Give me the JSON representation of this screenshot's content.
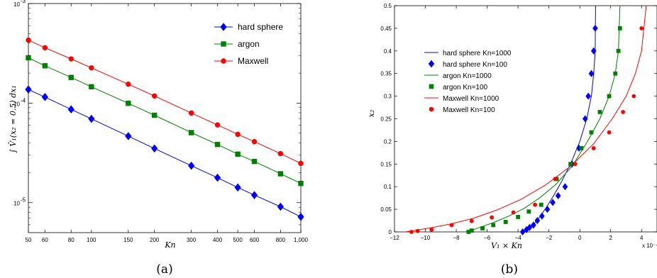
{
  "chart_data": [
    {
      "type": "line",
      "panel_label": "(a)",
      "xlabel": "Kn",
      "ylabel": "∫ V̄₁(x₂ = 0.5) dx₁",
      "xscale": "log",
      "yscale": "log",
      "xlim": [
        50,
        1000
      ],
      "ylim": [
        5e-06,
        0.001
      ],
      "x_ticks": [
        50,
        60,
        80,
        100,
        150,
        200,
        300,
        400,
        500,
        600,
        800,
        1000
      ],
      "x_tick_labels": [
        "50",
        "60",
        "80",
        "100",
        "150",
        "200",
        "300",
        "400",
        "500",
        "600",
        "800",
        "1,000"
      ],
      "y_ticks": [
        1e-05,
        0.0001,
        0.001
      ],
      "y_tick_labels": [
        {
          "base": "10",
          "exp": "-5"
        },
        {
          "base": "10",
          "exp": "-4"
        },
        {
          "base": "10",
          "exp": "-3"
        }
      ],
      "legend_position": "top-right",
      "x": [
        50,
        60,
        80,
        100,
        150,
        200,
        300,
        400,
        500,
        600,
        800,
        1000
      ],
      "series": [
        {
          "name": "hard sphere",
          "color": "#0000ff",
          "marker": "diamond",
          "values": [
            0.000137,
            0.000115,
            8.65e-05,
            6.95e-05,
            4.66e-05,
            3.5e-05,
            2.35e-05,
            1.78e-05,
            1.42e-05,
            1.19e-05,
            9.1e-06,
            7.2e-06
          ]
        },
        {
          "name": "argon",
          "color": "#008000",
          "marker": "square",
          "values": [
            0.000285,
            0.000237,
            0.000181,
            0.000146,
            9.95e-05,
            7.55e-05,
            5.05e-05,
            3.84e-05,
            3.07e-05,
            2.59e-05,
            1.95e-05,
            1.56e-05
          ]
        },
        {
          "name": "Maxwell",
          "color": "#ff0000",
          "marker": "circle",
          "values": [
            0.000429,
            0.00036,
            0.000278,
            0.000226,
            0.000155,
            0.000118,
            7.95e-05,
            6.04e-05,
            4.86e-05,
            4.1e-05,
            3.11e-05,
            2.48e-05
          ]
        }
      ]
    },
    {
      "type": "line",
      "panel_label": "(b)",
      "xlabel": "V₁ × Kn",
      "ylabel": "x₂",
      "x_multiplier": "x 10⁻⁴",
      "xlim": [
        -12,
        5
      ],
      "ylim": [
        0,
        0.5
      ],
      "x_ticks": [
        -12,
        -10,
        -8,
        -6,
        -4,
        -2,
        0,
        2,
        4
      ],
      "y_ticks": [
        0,
        0.05,
        0.1,
        0.15,
        0.2,
        0.25,
        0.3,
        0.35,
        0.4,
        0.45,
        0.5
      ],
      "legend_position": "top-left",
      "legend": [
        {
          "label": "hard sphere Kn=1000",
          "color": "#0000ff",
          "style": "line"
        },
        {
          "label": "hard sphere Kn=100",
          "color": "#0000ff",
          "style": "diamond"
        },
        {
          "label": "argon Kn=1000",
          "color": "#008000",
          "style": "line"
        },
        {
          "label": "argon Kn=100",
          "color": "#008000",
          "style": "square"
        },
        {
          "label": "Maxwell Kn=1000",
          "color": "#ff0000",
          "style": "line"
        },
        {
          "label": "Maxwell Kn=100",
          "color": "#ff0000",
          "style": "circle"
        }
      ],
      "series": [
        {
          "name": "hard sphere Kn=1000",
          "color": "#0000ff",
          "style": "line",
          "x": [
            -3.65,
            -3.5,
            -3.2,
            -2.9,
            -2.55,
            -2.15,
            -1.7,
            -1.2,
            -0.6,
            0,
            0.45,
            0.75,
            0.9,
            1.0,
            1.02
          ],
          "y": [
            0,
            0.005,
            0.012,
            0.02,
            0.035,
            0.055,
            0.08,
            0.11,
            0.15,
            0.2,
            0.25,
            0.3,
            0.35,
            0.4,
            0.5
          ]
        },
        {
          "name": "hard sphere Kn=100",
          "color": "#0000ff",
          "style": "diamond",
          "x": [
            -3.7,
            -3.45,
            -3.25,
            -3.0,
            -2.75,
            -2.45,
            -2.1,
            -1.75,
            -1.4,
            -0.95,
            -0.5,
            -0.05,
            0.35,
            0.55,
            0.75,
            0.9,
            1.0
          ],
          "y": [
            0,
            0.005,
            0.01,
            0.015,
            0.025,
            0.035,
            0.05,
            0.065,
            0.08,
            0.1,
            0.15,
            0.185,
            0.25,
            0.3,
            0.35,
            0.4,
            0.45
          ]
        },
        {
          "name": "argon Kn=1000",
          "color": "#008000",
          "style": "line",
          "x": [
            -7.4,
            -6.9,
            -6.3,
            -5.5,
            -4.6,
            -3.6,
            -2.6,
            -1.55,
            -0.5,
            0.5,
            1.3,
            1.9,
            2.3,
            2.5,
            2.6
          ],
          "y": [
            0,
            0.005,
            0.012,
            0.022,
            0.035,
            0.052,
            0.075,
            0.105,
            0.145,
            0.2,
            0.25,
            0.3,
            0.35,
            0.4,
            0.5
          ]
        },
        {
          "name": "argon Kn=100",
          "color": "#008000",
          "style": "square",
          "x": [
            -7.2,
            -7.0,
            -6.3,
            -5.6,
            -4.8,
            -4.0,
            -3.3,
            -2.5,
            -1.5,
            -0.6,
            0.1,
            0.75,
            1.3,
            1.9,
            2.3,
            2.5,
            2.6
          ],
          "y": [
            0,
            0.003,
            0.008,
            0.015,
            0.022,
            0.033,
            0.045,
            0.06,
            0.117,
            0.15,
            0.185,
            0.22,
            0.265,
            0.3,
            0.35,
            0.4,
            0.45
          ]
        },
        {
          "name": "Maxwell Kn=1000",
          "color": "#ff0000",
          "style": "line",
          "x": [
            -11.3,
            -10.5,
            -9.5,
            -8.3,
            -6.9,
            -5.4,
            -3.8,
            -2.2,
            -0.6,
            0.9,
            2.1,
            3.0,
            3.6,
            4.0,
            4.3
          ],
          "y": [
            0,
            0.004,
            0.01,
            0.018,
            0.03,
            0.048,
            0.072,
            0.104,
            0.145,
            0.195,
            0.25,
            0.3,
            0.35,
            0.4,
            0.5
          ]
        },
        {
          "name": "Maxwell Kn=100",
          "color": "#ff0000",
          "style": "circle",
          "x": [
            -10.9,
            -10.5,
            -9.6,
            -8.3,
            -7.0,
            -5.7,
            -4.3,
            -2.9,
            -1.6,
            -0.3,
            0.9,
            1.9,
            2.8,
            3.5,
            4.0
          ],
          "y": [
            0,
            0.002,
            0.005,
            0.015,
            0.024,
            0.032,
            0.043,
            0.06,
            0.117,
            0.15,
            0.185,
            0.22,
            0.265,
            0.3,
            0.45
          ]
        }
      ]
    }
  ]
}
